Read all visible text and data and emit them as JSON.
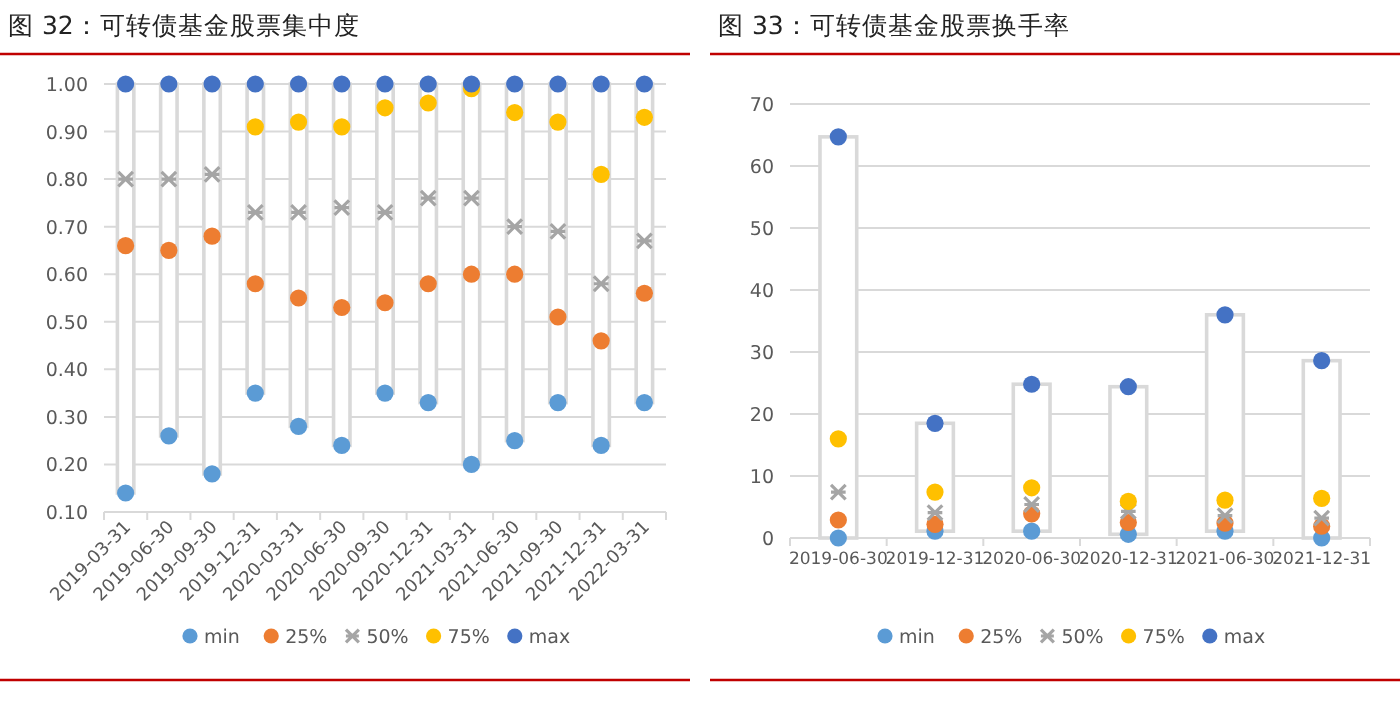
{
  "chart_data": [
    {
      "type": "scatter",
      "title": "图 32：可转债基金股票集中度",
      "categories": [
        "2019-03-31",
        "2019-06-30",
        "2019-09-30",
        "2019-12-31",
        "2020-03-31",
        "2020-06-30",
        "2020-09-30",
        "2020-12-31",
        "2021-03-31",
        "2021-06-30",
        "2021-09-30",
        "2021-12-31",
        "2022-03-31"
      ],
      "ylim": [
        0.1,
        1.0
      ],
      "yticks": [
        {
          "value": 0.1,
          "label": "0.10"
        },
        {
          "value": 0.2,
          "label": "0.20"
        },
        {
          "value": 0.3,
          "label": "0.30"
        },
        {
          "value": 0.4,
          "label": "0.40"
        },
        {
          "value": 0.5,
          "label": "0.50"
        },
        {
          "value": 0.6,
          "label": "0.60"
        },
        {
          "value": 0.7,
          "label": "0.70"
        },
        {
          "value": 0.8,
          "label": "0.80"
        },
        {
          "value": 0.9,
          "label": "0.90"
        },
        {
          "value": 1.0,
          "label": "1.00"
        }
      ],
      "grid": "y",
      "legend": "bottom",
      "series": [
        {
          "type": "bar",
          "color": "#ffffff",
          "base": [
            0.14,
            0.26,
            0.18,
            0.35,
            0.28,
            0.24,
            0.35,
            0.33,
            0.2,
            0.25,
            0.33,
            0.24,
            0.33
          ],
          "values": [
            0.86,
            0.74,
            0.82,
            0.65,
            0.72,
            0.76,
            0.65,
            0.67,
            0.8,
            0.75,
            0.67,
            0.76,
            0.67
          ]
        },
        {
          "name": "min",
          "color": "#5b9bd5",
          "marker": "circle",
          "values": [
            0.14,
            0.26,
            0.18,
            0.35,
            0.28,
            0.24,
            0.35,
            0.33,
            0.2,
            0.25,
            0.33,
            0.24,
            0.33
          ]
        },
        {
          "name": "25%",
          "color": "#ed7d31",
          "marker": "circle",
          "values": [
            0.66,
            0.65,
            0.68,
            0.58,
            0.55,
            0.53,
            0.54,
            0.58,
            0.6,
            0.6,
            0.51,
            0.46,
            0.56
          ]
        },
        {
          "name": "50%",
          "color": "#a5a5a5",
          "marker": "cross",
          "values": [
            0.8,
            0.8,
            0.81,
            0.73,
            0.73,
            0.74,
            0.73,
            0.76,
            0.76,
            0.7,
            0.69,
            0.58,
            0.67
          ]
        },
        {
          "name": "75%",
          "color": "#ffc000",
          "marker": "circle",
          "values": [
            null,
            null,
            null,
            0.91,
            0.92,
            0.91,
            0.95,
            0.96,
            0.99,
            0.94,
            0.92,
            0.81,
            0.93
          ]
        },
        {
          "name": "max",
          "color": "#4472c4",
          "marker": "circle",
          "values": [
            1.0,
            1.0,
            1.0,
            1.0,
            1.0,
            1.0,
            1.0,
            1.0,
            1.0,
            1.0,
            1.0,
            1.0,
            1.0
          ]
        }
      ]
    },
    {
      "type": "scatter",
      "title": "图 33：可转债基金股票换手率",
      "categories": [
        "2019-06-30",
        "2019-12-31",
        "2020-06-30",
        "2020-12-31",
        "2021-06-30",
        "2021-12-31"
      ],
      "ylim": [
        0,
        70
      ],
      "yticks": [
        0,
        10,
        20,
        30,
        40,
        50,
        60,
        70
      ],
      "grid": "y",
      "legend": "bottom",
      "series": [
        {
          "type": "bar",
          "color": "#ffffff",
          "base": [
            0,
            1.1,
            1.1,
            0.6,
            1.1,
            0
          ],
          "values": [
            64.7,
            17.4,
            23.7,
            23.8,
            34.9,
            28.6
          ]
        },
        {
          "name": "min",
          "color": "#5b9bd5",
          "marker": "circle",
          "values": [
            0,
            1.1,
            1.1,
            0.6,
            1.1,
            0
          ]
        },
        {
          "name": "25%",
          "color": "#ed7d31",
          "marker": "circle",
          "values": [
            2.9,
            2.2,
            3.9,
            2.5,
            2.4,
            1.9
          ]
        },
        {
          "name": "50%",
          "color": "#a5a5a5",
          "marker": "cross",
          "values": [
            7.4,
            4.1,
            5.4,
            4.3,
            3.6,
            3.2
          ]
        },
        {
          "name": "75%",
          "color": "#ffc000",
          "marker": "circle",
          "values": [
            16.0,
            7.4,
            8.1,
            5.9,
            6.1,
            6.4
          ]
        },
        {
          "name": "max",
          "color": "#4472c4",
          "marker": "circle",
          "values": [
            64.7,
            18.5,
            24.8,
            24.4,
            36.0,
            28.6
          ]
        }
      ]
    }
  ]
}
